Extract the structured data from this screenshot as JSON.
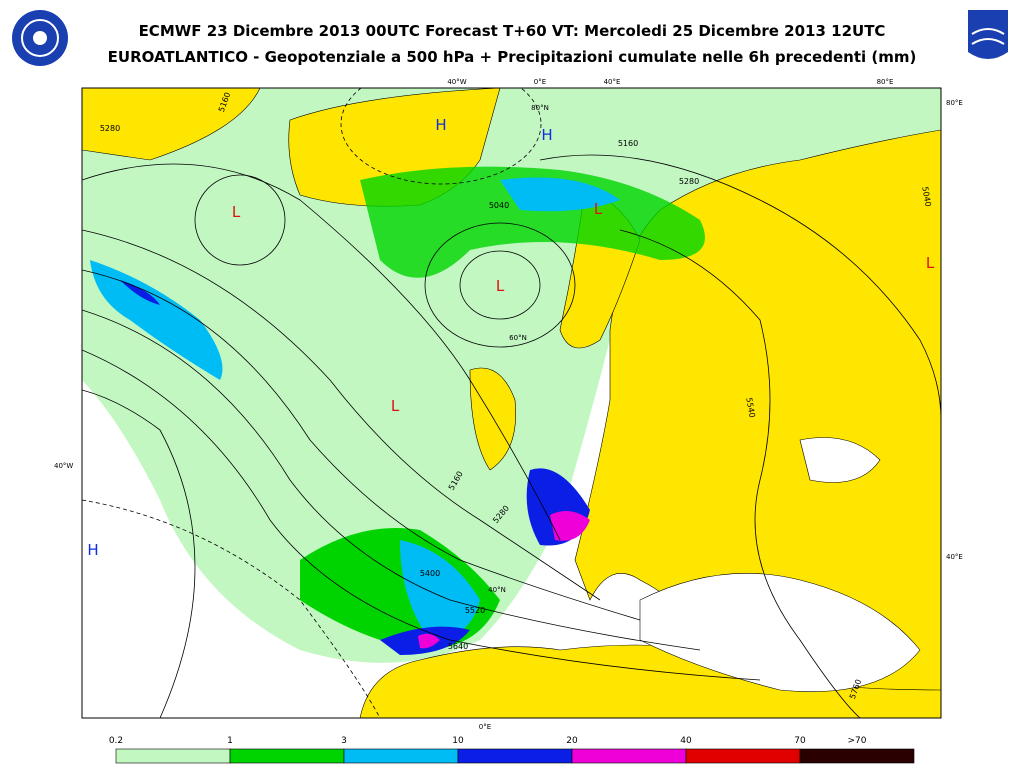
{
  "header": {
    "title": "ECMWF 23 Dicembre 2013 00UTC Forecast T+60 VT: Mercoledi 25 Dicembre 2013 12UTC",
    "subtitle": "EUROATLANTICO - Geopotenziale a 500 hPa + Precipitazioni cumulate nelle 6h precedenti (mm)"
  },
  "map": {
    "pressure_centers": [
      "H",
      "H",
      "L",
      "L",
      "L",
      "L",
      "H",
      "L"
    ],
    "contour_labels": [
      "5280",
      "5160",
      "5040",
      "5160",
      "5280",
      "5040",
      "5400",
      "5520",
      "5640",
      "5160",
      "5280",
      "5540",
      "5760"
    ],
    "graticule_labels": [
      "40°W",
      "0°E",
      "40°E",
      "80°E",
      "80°E",
      "40°W",
      "40°E",
      "0°E",
      "80°N",
      "60°N",
      "40°N"
    ]
  },
  "legend": {
    "labels": [
      "0.2",
      "1",
      "3",
      "10",
      "20",
      "40",
      "70",
      ">70"
    ],
    "colors": [
      "#c2f7c2",
      "#00d400",
      "#00bcf5",
      "#0a1ee6",
      "#f000d8",
      "#e00000",
      "#2a0000"
    ]
  }
}
